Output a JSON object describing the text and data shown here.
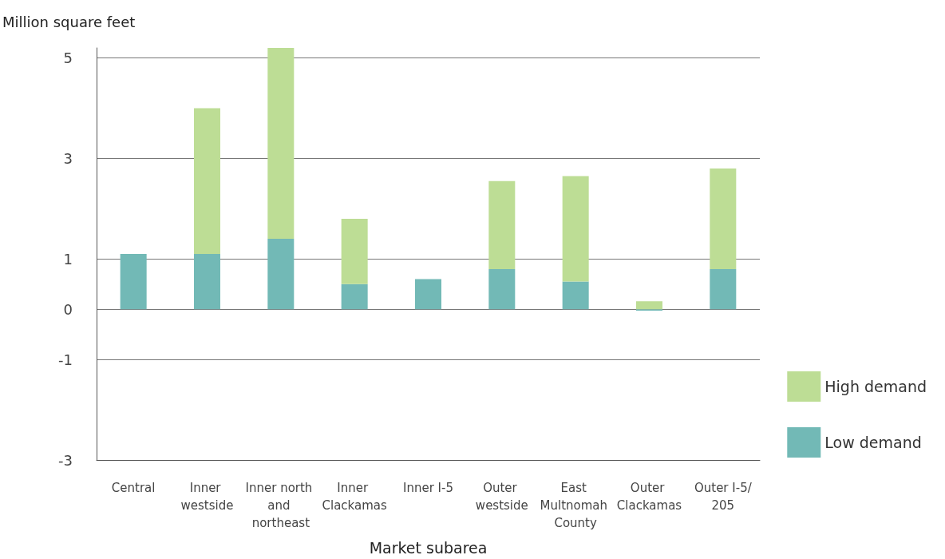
{
  "chart_data": {
    "type": "bar",
    "stacked": true,
    "xlabel": "Market subarea",
    "ylabel": "Million square feet",
    "categories": [
      "Central",
      "Inner westside",
      "Inner north and northeast",
      "Inner Clackamas",
      "Inner I-5",
      "Outer westside",
      "East Multnomah County",
      "Outer Clackamas",
      "Outer I-5/205"
    ],
    "series": [
      {
        "name": "Low demand",
        "color": "#72b9b6",
        "values": [
          1.1,
          1.1,
          1.4,
          0.5,
          0.6,
          0.8,
          0.55,
          -0.03,
          0.8
        ]
      },
      {
        "name": "High demand",
        "color": "#bddd95",
        "values": [
          0,
          2.9,
          3.8,
          1.3,
          0,
          1.75,
          2.1,
          0.16,
          2.0
        ]
      }
    ],
    "ylim": [
      -3,
      5.2
    ],
    "yticks": [
      -3,
      -1,
      0,
      1,
      3,
      5
    ],
    "grid": "y",
    "legend": "right"
  }
}
